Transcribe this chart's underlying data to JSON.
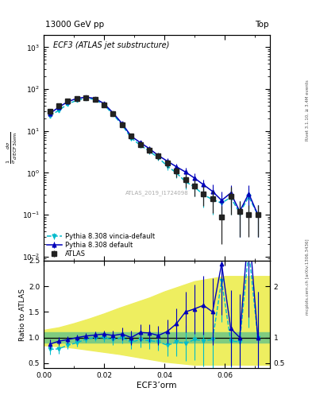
{
  "title_top": "13000 GeV pp",
  "title_right": "Top",
  "plot_title": "ECF3 (ATLAS jet substructure)",
  "xlabel": "ECF3’orm",
  "ylabel_ratio": "Ratio to ATLAS",
  "right_label_top": "Rivet 3.1.10, ≥ 3.4M events",
  "right_label_bottom": "mcplots.cern.ch [arXiv:1306.3436]",
  "watermark": "ATLAS_2019_I1724098",
  "atlas_x": [
    0.002,
    0.005,
    0.008,
    0.011,
    0.014,
    0.017,
    0.02,
    0.023,
    0.026,
    0.029,
    0.032,
    0.035,
    0.038,
    0.041,
    0.044,
    0.047,
    0.05,
    0.053,
    0.056,
    0.059,
    0.062,
    0.065,
    0.068,
    0.071
  ],
  "atlas_y": [
    30,
    40,
    52,
    60,
    62,
    57,
    42,
    26,
    14,
    7.5,
    4.8,
    3.5,
    2.5,
    1.7,
    1.1,
    0.7,
    0.48,
    0.32,
    0.24,
    0.09,
    0.28,
    0.12,
    0.1,
    0.1
  ],
  "atlas_yerr": [
    3.5,
    3.5,
    4,
    4.5,
    4.5,
    4.5,
    3.5,
    2.5,
    1.8,
    1.1,
    0.75,
    0.55,
    0.45,
    0.38,
    0.3,
    0.25,
    0.2,
    0.16,
    0.13,
    0.07,
    0.18,
    0.09,
    0.07,
    0.07
  ],
  "pythia_x": [
    0.002,
    0.005,
    0.008,
    0.011,
    0.014,
    0.017,
    0.02,
    0.023,
    0.026,
    0.029,
    0.032,
    0.035,
    0.038,
    0.041,
    0.044,
    0.047,
    0.05,
    0.053,
    0.056,
    0.059,
    0.062,
    0.065,
    0.068,
    0.071
  ],
  "pythia_y": [
    26,
    37,
    50,
    60,
    64,
    60,
    45,
    27,
    15,
    7.5,
    5.3,
    3.8,
    2.6,
    1.9,
    1.4,
    1.05,
    0.75,
    0.52,
    0.36,
    0.22,
    0.33,
    0.12,
    0.32,
    0.1
  ],
  "pythia_yerr": [
    2.5,
    2.5,
    3,
    3.5,
    3.5,
    3.5,
    3,
    2,
    1.4,
    0.9,
    0.65,
    0.48,
    0.38,
    0.32,
    0.27,
    0.27,
    0.22,
    0.18,
    0.16,
    0.13,
    0.18,
    0.09,
    0.18,
    0.07
  ],
  "vincia_x": [
    0.002,
    0.005,
    0.008,
    0.011,
    0.014,
    0.017,
    0.02,
    0.023,
    0.026,
    0.029,
    0.032,
    0.035,
    0.038,
    0.041,
    0.044,
    0.047,
    0.05,
    0.053,
    0.056,
    0.059,
    0.062,
    0.065,
    0.068,
    0.071
  ],
  "vincia_y": [
    23,
    31,
    44,
    54,
    60,
    57,
    42,
    25,
    14,
    6.8,
    4.6,
    3.3,
    2.3,
    1.45,
    1.0,
    0.62,
    0.46,
    0.3,
    0.23,
    0.19,
    0.26,
    0.11,
    0.27,
    0.1
  ],
  "vincia_yerr": [
    2.5,
    2.5,
    3,
    3.5,
    3.5,
    3.5,
    3,
    2,
    1.3,
    0.85,
    0.58,
    0.46,
    0.36,
    0.28,
    0.25,
    0.22,
    0.18,
    0.15,
    0.13,
    0.11,
    0.16,
    0.08,
    0.16,
    0.07
  ],
  "ratio_pythia": [
    0.87,
    0.93,
    0.96,
    1.0,
    1.03,
    1.05,
    1.07,
    1.04,
    1.07,
    1.0,
    1.1,
    1.09,
    1.04,
    1.12,
    1.27,
    1.5,
    1.56,
    1.63,
    1.5,
    2.44,
    1.18,
    1.0,
    3.2,
    1.0
  ],
  "ratio_pythia_err": [
    0.1,
    0.08,
    0.07,
    0.06,
    0.06,
    0.07,
    0.07,
    0.09,
    0.12,
    0.14,
    0.16,
    0.17,
    0.18,
    0.23,
    0.3,
    0.4,
    0.48,
    0.58,
    0.65,
    1.0,
    0.75,
    0.85,
    1.8,
    0.9
  ],
  "ratio_vincia": [
    0.77,
    0.78,
    0.85,
    0.9,
    0.97,
    1.0,
    1.0,
    0.96,
    1.0,
    0.91,
    0.96,
    0.94,
    0.92,
    0.85,
    0.91,
    0.89,
    0.96,
    0.94,
    0.96,
    2.11,
    0.93,
    0.92,
    2.7,
    1.0
  ],
  "ratio_vincia_err": [
    0.1,
    0.09,
    0.08,
    0.07,
    0.07,
    0.07,
    0.08,
    0.1,
    0.12,
    0.14,
    0.15,
    0.16,
    0.17,
    0.21,
    0.27,
    0.35,
    0.4,
    0.5,
    0.58,
    0.8,
    0.65,
    0.78,
    1.5,
    0.9
  ],
  "band_x": [
    0.0,
    0.005,
    0.01,
    0.015,
    0.02,
    0.025,
    0.03,
    0.035,
    0.04,
    0.045,
    0.05,
    0.055,
    0.06,
    0.065,
    0.07,
    0.075
  ],
  "green_lo": [
    0.9,
    0.9,
    0.9,
    0.9,
    0.9,
    0.9,
    0.9,
    0.9,
    0.9,
    0.9,
    0.9,
    0.9,
    0.9,
    0.9,
    0.9,
    0.9
  ],
  "green_hi": [
    1.1,
    1.1,
    1.1,
    1.1,
    1.1,
    1.1,
    1.1,
    1.1,
    1.1,
    1.1,
    1.1,
    1.1,
    1.1,
    1.1,
    1.1,
    1.1
  ],
  "yellow_lo": [
    0.85,
    0.83,
    0.8,
    0.76,
    0.72,
    0.68,
    0.63,
    0.58,
    0.53,
    0.5,
    0.47,
    0.47,
    0.47,
    0.47,
    0.47,
    0.47
  ],
  "yellow_hi": [
    1.15,
    1.2,
    1.28,
    1.37,
    1.47,
    1.58,
    1.68,
    1.78,
    1.9,
    2.0,
    2.1,
    2.15,
    2.2,
    2.2,
    2.2,
    2.2
  ],
  "xlim": [
    0.0,
    0.075
  ],
  "ylim_main": [
    0.008,
    2000
  ],
  "ylim_ratio": [
    0.4,
    2.5
  ],
  "color_atlas": "#222222",
  "color_pythia": "#0000bb",
  "color_vincia": "#00bbcc",
  "color_green": "#80cc80",
  "color_yellow": "#eeee60",
  "legend_atlas": "ATLAS",
  "legend_pythia": "Pythia 8.308 default",
  "legend_vincia": "Pythia 8.308 vincia-default"
}
